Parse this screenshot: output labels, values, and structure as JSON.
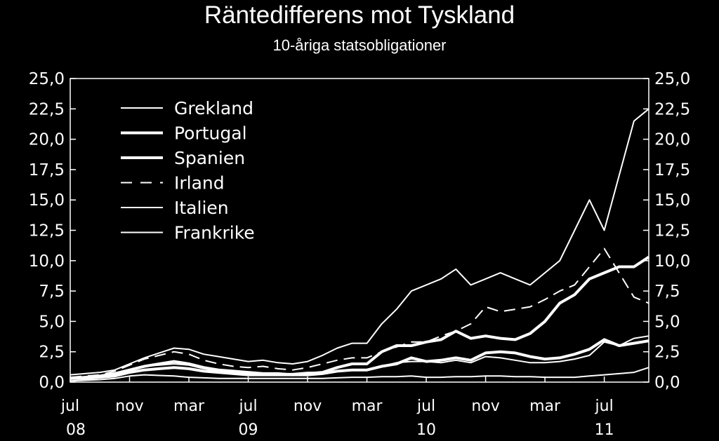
{
  "chart_data": {
    "type": "line",
    "title": "Räntedifferens mot Tyskland",
    "subtitle": "10-åriga statsobligationer",
    "xlabel": "",
    "ylabel": "",
    "ylim": [
      0,
      25
    ],
    "y_ticks": [
      "0,0",
      "2,5",
      "5,0",
      "7,5",
      "10,0",
      "12,5",
      "15,0",
      "17,5",
      "20,0",
      "22,5",
      "25,0"
    ],
    "x_tick_labels": [
      "jul",
      "nov",
      "mar",
      "jul",
      "nov",
      "mar",
      "jul",
      "nov",
      "mar",
      "jul"
    ],
    "year_labels": [
      "08",
      "09",
      "10",
      "11"
    ],
    "legend_position": "top-left",
    "grid": false,
    "x": [
      "2008-07",
      "2008-08",
      "2008-09",
      "2008-10",
      "2008-11",
      "2008-12",
      "2009-01",
      "2009-02",
      "2009-03",
      "2009-04",
      "2009-05",
      "2009-06",
      "2009-07",
      "2009-08",
      "2009-09",
      "2009-10",
      "2009-11",
      "2009-12",
      "2010-01",
      "2010-02",
      "2010-03",
      "2010-04",
      "2010-05",
      "2010-06",
      "2010-07",
      "2010-08",
      "2010-09",
      "2010-10",
      "2010-11",
      "2010-12",
      "2011-01",
      "2011-02",
      "2011-03",
      "2011-04",
      "2011-05",
      "2011-06",
      "2011-07",
      "2011-08",
      "2011-09",
      "2011-10"
    ],
    "series": [
      {
        "name": "Grekland",
        "style": "thin-solid",
        "values": [
          0.6,
          0.7,
          0.8,
          1.0,
          1.5,
          2.0,
          2.4,
          2.8,
          2.7,
          2.3,
          2.1,
          1.9,
          1.7,
          1.8,
          1.6,
          1.5,
          1.7,
          2.2,
          2.8,
          3.2,
          3.2,
          4.8,
          6.0,
          7.5,
          8.0,
          8.5,
          9.3,
          8.0,
          8.5,
          9.0,
          8.5,
          8.0,
          9.0,
          10.0,
          12.5,
          15.0,
          12.5,
          17.0,
          21.5,
          22.5
        ]
      },
      {
        "name": "Portugal",
        "style": "thick-solid",
        "values": [
          0.3,
          0.4,
          0.5,
          0.7,
          1.0,
          1.3,
          1.5,
          1.7,
          1.5,
          1.2,
          1.0,
          0.9,
          0.8,
          0.7,
          0.7,
          0.6,
          0.7,
          0.8,
          1.2,
          1.5,
          1.5,
          2.5,
          3.0,
          3.0,
          3.3,
          3.5,
          4.2,
          3.6,
          3.8,
          3.6,
          3.5,
          4.0,
          5.0,
          6.5,
          7.2,
          8.5,
          9.0,
          9.5,
          9.5,
          10.3
        ]
      },
      {
        "name": "Spanien",
        "style": "thick-solid",
        "values": [
          0.3,
          0.3,
          0.4,
          0.5,
          0.8,
          1.0,
          1.1,
          1.2,
          1.1,
          0.9,
          0.8,
          0.7,
          0.6,
          0.6,
          0.6,
          0.6,
          0.6,
          0.7,
          0.9,
          1.0,
          1.0,
          1.3,
          1.5,
          2.0,
          1.7,
          1.8,
          2.0,
          1.8,
          2.4,
          2.5,
          2.4,
          2.1,
          1.9,
          2.0,
          2.3,
          2.7,
          3.5,
          3.0,
          3.2,
          3.4
        ]
      },
      {
        "name": "Irland",
        "style": "dashed",
        "values": [
          0.4,
          0.5,
          0.6,
          0.9,
          1.4,
          1.9,
          2.2,
          2.5,
          2.3,
          1.8,
          1.5,
          1.3,
          1.2,
          1.3,
          1.1,
          1.0,
          1.2,
          1.5,
          1.8,
          2.0,
          2.0,
          2.5,
          2.9,
          3.3,
          3.3,
          3.8,
          4.2,
          4.8,
          6.2,
          5.8,
          6.0,
          6.2,
          6.8,
          7.5,
          8.0,
          9.5,
          11.0,
          9.0,
          7.0,
          6.5
        ]
      },
      {
        "name": "Italien",
        "style": "thin-solid",
        "values": [
          0.3,
          0.4,
          0.5,
          0.7,
          1.0,
          1.3,
          1.4,
          1.5,
          1.4,
          1.1,
          0.9,
          0.8,
          0.8,
          0.7,
          0.7,
          0.7,
          0.8,
          0.8,
          0.9,
          1.0,
          1.0,
          1.3,
          1.6,
          1.7,
          1.7,
          1.6,
          1.8,
          1.6,
          2.1,
          2.0,
          1.8,
          1.6,
          1.6,
          1.7,
          1.9,
          2.2,
          3.3,
          3.0,
          3.6,
          3.8
        ]
      },
      {
        "name": "Frankrike",
        "style": "thin-solid",
        "values": [
          0.1,
          0.15,
          0.2,
          0.3,
          0.5,
          0.6,
          0.55,
          0.5,
          0.4,
          0.35,
          0.3,
          0.3,
          0.3,
          0.3,
          0.3,
          0.3,
          0.3,
          0.3,
          0.35,
          0.4,
          0.4,
          0.45,
          0.45,
          0.5,
          0.4,
          0.4,
          0.45,
          0.45,
          0.5,
          0.5,
          0.45,
          0.45,
          0.4,
          0.4,
          0.4,
          0.5,
          0.6,
          0.7,
          0.8,
          1.2
        ]
      }
    ]
  }
}
